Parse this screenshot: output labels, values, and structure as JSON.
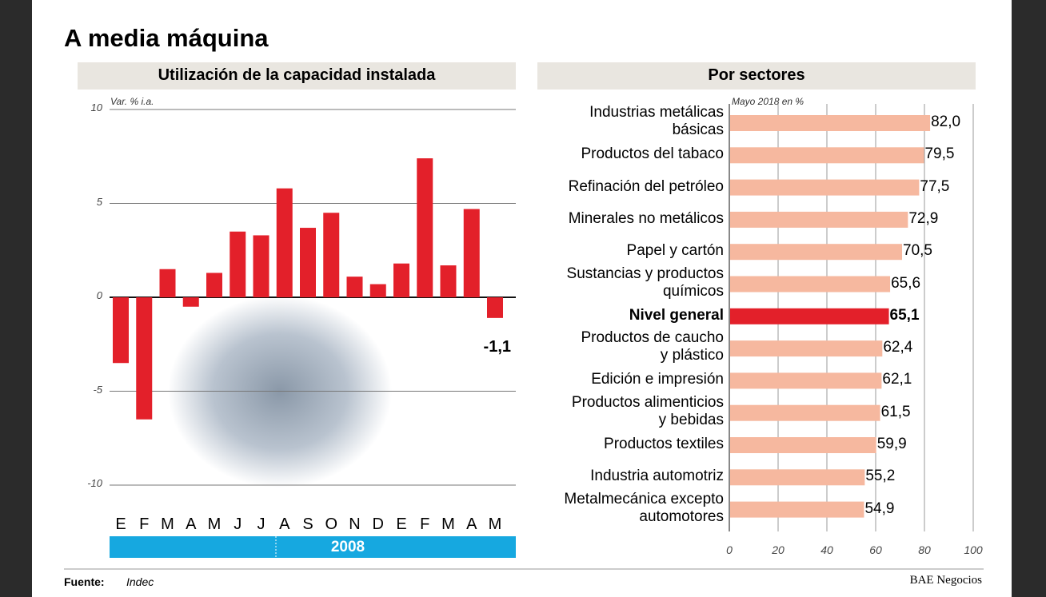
{
  "title": "A media máquina",
  "source_label": "Fuente:",
  "source": "Indec",
  "credit": "BAE Negocios",
  "chart_data": [
    {
      "type": "bar",
      "title": "Utilización de la capacidad instalada",
      "y_label": "Var. % i.a.",
      "categories": [
        "E",
        "F",
        "M",
        "A",
        "M",
        "J",
        "J",
        "A",
        "S",
        "O",
        "N",
        "D",
        "E",
        "F",
        "M",
        "A",
        "M"
      ],
      "values": [
        -3.5,
        -6.5,
        1.5,
        -0.5,
        1.3,
        3.5,
        3.3,
        5.8,
        3.7,
        4.5,
        1.1,
        0.7,
        1.8,
        7.4,
        1.7,
        4.7,
        -1.1
      ],
      "value_labels": [
        null,
        null,
        null,
        null,
        null,
        null,
        null,
        null,
        null,
        null,
        null,
        null,
        null,
        null,
        null,
        null,
        "-1,1"
      ],
      "color": "#e3202a",
      "ylim": [
        -10,
        10
      ],
      "yticks": [
        -10,
        -5,
        0,
        5,
        10
      ],
      "grid": true,
      "period_label": "2008",
      "period_color": "#16a8e0"
    },
    {
      "type": "barh",
      "title": "Por sectores",
      "subtitle": "Mayo 2018 en %",
      "categories": [
        "Industrias metálicas\nbásicas",
        "Productos del tabaco",
        "Refinación del petróleo",
        "Minerales no metálicos",
        "Papel y cartón",
        "Sustancias y productos\nquímicos",
        "Nivel general",
        "Productos de caucho\ny plástico",
        "Edición e impresión",
        "Productos alimenticios\ny bebidas",
        "Productos textiles",
        "Industria automotriz",
        "Metalmecánica excepto\nautomotores"
      ],
      "values": [
        82.0,
        79.5,
        77.5,
        72.9,
        70.5,
        65.6,
        65.1,
        62.4,
        62.1,
        61.5,
        59.9,
        55.2,
        54.9
      ],
      "value_labels": [
        "82,0",
        "79,5",
        "77,5",
        "72,9",
        "70,5",
        "65,6",
        "65,1",
        "62,4",
        "62,1",
        "61,5",
        "59,9",
        "55,2",
        "54,9"
      ],
      "color": "#f6b89f",
      "highlight": "Nivel general",
      "highlight_color": "#e3202a",
      "xlim": [
        0,
        100
      ],
      "xticks": [
        0,
        20,
        40,
        60,
        80,
        100
      ],
      "grid": true
    }
  ]
}
